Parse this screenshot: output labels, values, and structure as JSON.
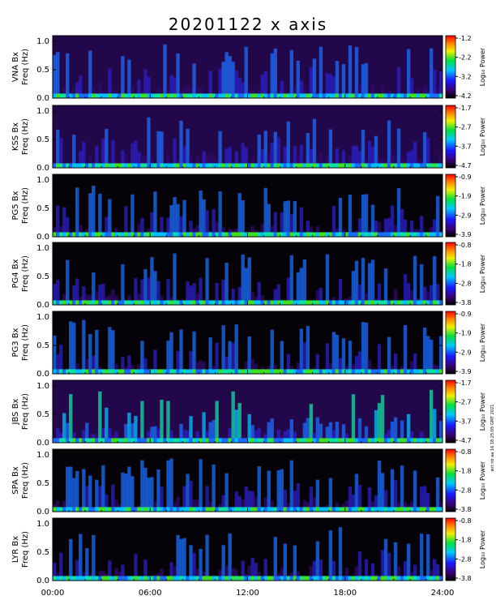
{
  "title": "20201122 x axis",
  "side_note": "wrt nb aa 16 18:25:05 GMT 2021",
  "colorbar_label": "Log₁₀ Power",
  "chart_data": {
    "type": "heatmap",
    "title": "20201122 x axis",
    "x_ticks": [
      "00:00",
      "06:00",
      "12:00",
      "18:00",
      "24:00"
    ],
    "x_range_hours": [
      0,
      24
    ],
    "y_ticks": [
      "0.0",
      "0.5",
      "1.0"
    ],
    "y_range": [
      0,
      1.1
    ],
    "panels": [
      {
        "station": "VNA Bx",
        "ylabel": "Freq (Hz)",
        "cbar": [
          "-1.2",
          "-2.2",
          "-3.2",
          "-4.2"
        ]
      },
      {
        "station": "KSS Bx",
        "ylabel": "Freq (Hz)",
        "cbar": [
          "-1.7",
          "-2.7",
          "-3.7",
          "-4.7"
        ]
      },
      {
        "station": "PG5 Bx",
        "ylabel": "Freq (Hz)",
        "cbar": [
          "-0.9",
          "-1.9",
          "-2.9",
          "-3.9"
        ]
      },
      {
        "station": "PG4 Bx",
        "ylabel": "Freq (Hz)",
        "cbar": [
          "-0.8",
          "-1.8",
          "-2.8",
          "-3.8"
        ]
      },
      {
        "station": "PG3 Bx",
        "ylabel": "Freq (Hz)",
        "cbar": [
          "-0.9",
          "-1.9",
          "-2.9",
          "-3.9"
        ]
      },
      {
        "station": "JBS Bx",
        "ylabel": "Freq (Hz)",
        "cbar": [
          "-1.7",
          "-2.7",
          "-3.7",
          "-4.7"
        ]
      },
      {
        "station": "SPA Bx",
        "ylabel": "Freq (Hz)",
        "cbar": [
          "-0.8",
          "-1.8",
          "-2.8",
          "-3.8"
        ]
      },
      {
        "station": "LYR Bx",
        "ylabel": "Freq (Hz)",
        "cbar": [
          "-0.8",
          "-1.8",
          "-2.8",
          "-3.8"
        ]
      }
    ]
  }
}
